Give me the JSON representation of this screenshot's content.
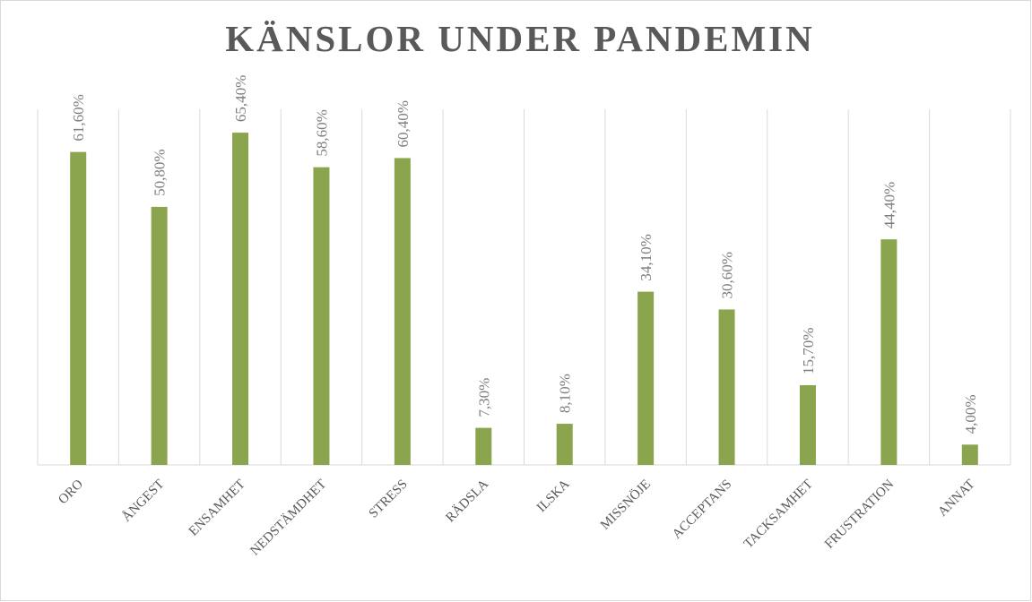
{
  "chart_data": {
    "type": "bar",
    "title": "KÄNSLOR UNDER PANDEMIN",
    "categories": [
      "ORO",
      "ÅNGEST",
      "ENSAMHET",
      "NEDSTÄMDHET",
      "STRESS",
      "RÄDSLA",
      "ILSKA",
      "MISSNÖJE",
      "ACCEPTANS",
      "TACKSAMHET",
      "FRUSTRATION",
      "ANNAT"
    ],
    "values": [
      61.6,
      50.8,
      65.4,
      58.6,
      60.4,
      7.3,
      8.1,
      34.1,
      30.6,
      15.7,
      44.4,
      4.0
    ],
    "value_labels": [
      "61,60%",
      "50,80%",
      "65,40%",
      "58,60%",
      "60,40%",
      "7,30%",
      "8,10%",
      "34,10%",
      "30,60%",
      "15,70%",
      "44,40%",
      "4,00%"
    ],
    "color": "#8ba54e",
    "ylim": [
      0,
      70
    ]
  }
}
